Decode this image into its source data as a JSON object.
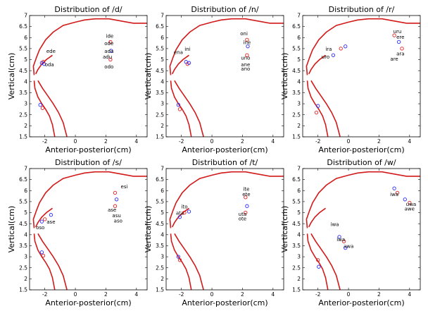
{
  "figure": {
    "panels": [
      {
        "id": "d",
        "title": "Distribution of /d/"
      },
      {
        "id": "n",
        "title": "Distribution of /n/"
      },
      {
        "id": "r",
        "title": "Distribution of /r/"
      },
      {
        "id": "s",
        "title": "Distribution of /s/"
      },
      {
        "id": "t",
        "title": "Distribution of /t/"
      },
      {
        "id": "w",
        "title": "Distribution of /w/"
      }
    ],
    "xlabel": "Anterior-posterior(cm)",
    "ylabel": "Vertical(cm)",
    "colors": {
      "tract": "#d21a1a",
      "marker_blue": "#2a2aff",
      "marker_red": "#e02020"
    }
  },
  "chart_data": [
    {
      "type": "scatter",
      "title": "Distribution of /d/",
      "xlabel": "Anterior-posterior(cm)",
      "ylabel": "Vertical(cm)",
      "xlim": [
        -3,
        4.7
      ],
      "ylim": [
        1.5,
        7
      ],
      "xticks": [
        -2,
        0,
        2,
        4
      ],
      "yticks": [
        1.5,
        2,
        2.5,
        3,
        3.5,
        4,
        4.5,
        5,
        5.5,
        6,
        6.5,
        7
      ],
      "points": [
        {
          "x": -2.2,
          "y": 4.85
        },
        {
          "x": -2.1,
          "y": 4.9
        },
        {
          "x": -2.05,
          "y": 4.8
        },
        {
          "x": 2.3,
          "y": 5.8
        },
        {
          "x": 2.35,
          "y": 5.4
        },
        {
          "x": 2.3,
          "y": 5.0
        },
        {
          "x": -2.3,
          "y": 2.95
        },
        {
          "x": -2.15,
          "y": 2.8
        }
      ],
      "labels": [
        {
          "text": "ide",
          "x": 2.25,
          "y": 6.0
        },
        {
          "text": "ode",
          "x": 2.2,
          "y": 5.65
        },
        {
          "text": "ada",
          "x": 2.2,
          "y": 5.3
        },
        {
          "text": "adu",
          "x": 2.1,
          "y": 5.05
        },
        {
          "text": "odo",
          "x": 2.2,
          "y": 4.6
        },
        {
          "text": "ede",
          "x": -1.6,
          "y": 5.3
        },
        {
          "text": "oda",
          "x": -1.7,
          "y": 4.7
        }
      ]
    },
    {
      "type": "scatter",
      "title": "Distribution of /n/",
      "xlabel": "Anterior-posterior(cm)",
      "ylabel": "Vertical(cm)",
      "xlim": [
        -3,
        4.7
      ],
      "ylim": [
        1.5,
        7
      ],
      "xticks": [
        -2,
        0,
        2,
        4
      ],
      "yticks": [
        1.5,
        2,
        2.5,
        3,
        3.5,
        4,
        4.5,
        5,
        5.5,
        6,
        6.5,
        7
      ],
      "points": [
        {
          "x": -1.7,
          "y": 4.9
        },
        {
          "x": -1.6,
          "y": 4.8
        },
        {
          "x": -1.5,
          "y": 4.85
        },
        {
          "x": 2.3,
          "y": 5.9
        },
        {
          "x": 2.35,
          "y": 5.6
        },
        {
          "x": 2.3,
          "y": 5.2
        },
        {
          "x": -2.2,
          "y": 2.95
        },
        {
          "x": -2.1,
          "y": 2.75
        }
      ],
      "labels": [
        {
          "text": "oni",
          "x": 2.1,
          "y": 6.1
        },
        {
          "text": "ine",
          "x": 2.3,
          "y": 5.7
        },
        {
          "text": "uno",
          "x": 2.2,
          "y": 5.0
        },
        {
          "text": "ane",
          "x": 2.2,
          "y": 4.7
        },
        {
          "text": "ano",
          "x": 2.2,
          "y": 4.5
        },
        {
          "text": "ena",
          "x": -2.2,
          "y": 5.25
        },
        {
          "text": "ini",
          "x": -1.6,
          "y": 5.4
        }
      ]
    },
    {
      "type": "scatter",
      "title": "Distribution of /r/",
      "xlabel": "Anterior-posterior(cm)",
      "ylabel": "Vertical(cm)",
      "xlim": [
        -3,
        4.7
      ],
      "ylim": [
        1.5,
        7
      ],
      "xticks": [
        -2,
        0,
        2,
        4
      ],
      "yticks": [
        1.5,
        2,
        2.5,
        3,
        3.5,
        4,
        4.5,
        5,
        5.5,
        6,
        6.5,
        7
      ],
      "points": [
        {
          "x": -1.0,
          "y": 5.2
        },
        {
          "x": -0.5,
          "y": 5.5
        },
        {
          "x": -0.2,
          "y": 5.6
        },
        {
          "x": 3.0,
          "y": 6.1
        },
        {
          "x": 3.3,
          "y": 5.8
        },
        {
          "x": 3.5,
          "y": 5.5
        },
        {
          "x": -2.0,
          "y": 2.9
        },
        {
          "x": -2.1,
          "y": 2.6
        }
      ],
      "labels": [
        {
          "text": "uru",
          "x": 3.2,
          "y": 6.2
        },
        {
          "text": "ere",
          "x": 3.4,
          "y": 5.95
        },
        {
          "text": "ara",
          "x": 3.4,
          "y": 5.2
        },
        {
          "text": "are",
          "x": 3.0,
          "y": 4.95
        },
        {
          "text": "ira",
          "x": -1.3,
          "y": 5.4
        },
        {
          "text": "uro",
          "x": -1.5,
          "y": 5.05
        }
      ]
    },
    {
      "type": "scatter",
      "title": "Distribution of /s/",
      "xlabel": "Anterior-posterior(cm)",
      "ylabel": "Vertical(cm)",
      "xlim": [
        -3,
        4.7
      ],
      "ylim": [
        1.5,
        7
      ],
      "xticks": [
        -2,
        0,
        2,
        4
      ],
      "yticks": [
        1.5,
        2,
        2.5,
        3,
        3.5,
        4,
        4.5,
        5,
        5.5,
        6,
        6.5,
        7
      ],
      "points": [
        {
          "x": -2.2,
          "y": 4.6
        },
        {
          "x": -2.0,
          "y": 4.7
        },
        {
          "x": -1.6,
          "y": 4.9
        },
        {
          "x": 2.6,
          "y": 5.9
        },
        {
          "x": 2.7,
          "y": 5.6
        },
        {
          "x": 2.6,
          "y": 5.3
        },
        {
          "x": -2.2,
          "y": 3.2
        },
        {
          "x": -2.1,
          "y": 3.05
        }
      ],
      "labels": [
        {
          "text": "esi",
          "x": 3.2,
          "y": 6.1
        },
        {
          "text": "ase",
          "x": 2.4,
          "y": 5.05
        },
        {
          "text": "asu",
          "x": 2.7,
          "y": 4.8
        },
        {
          "text": "aso",
          "x": 2.8,
          "y": 4.55
        },
        {
          "text": "ase",
          "x": -1.6,
          "y": 4.5
        },
        {
          "text": "oso",
          "x": -2.3,
          "y": 4.25
        }
      ]
    },
    {
      "type": "scatter",
      "title": "Distribution of /t/",
      "xlabel": "Anterior-posterior(cm)",
      "ylabel": "Vertical(cm)",
      "xlim": [
        -3,
        4.7
      ],
      "ylim": [
        1.5,
        7
      ],
      "xticks": [
        -2,
        0,
        2,
        4
      ],
      "yticks": [
        1.5,
        2,
        2.5,
        3,
        3.5,
        4,
        4.5,
        5,
        5.5,
        6,
        6.5,
        7
      ],
      "points": [
        {
          "x": -2.1,
          "y": 4.8
        },
        {
          "x": -1.8,
          "y": 5.0
        },
        {
          "x": -1.5,
          "y": 5.05
        },
        {
          "x": 2.2,
          "y": 5.7
        },
        {
          "x": 2.3,
          "y": 5.3
        },
        {
          "x": 2.2,
          "y": 5.0
        },
        {
          "x": -2.2,
          "y": 3.0
        },
        {
          "x": -2.1,
          "y": 2.85
        }
      ],
      "labels": [
        {
          "text": "ite",
          "x": 2.25,
          "y": 6.0
        },
        {
          "text": "ete",
          "x": 2.25,
          "y": 5.75
        },
        {
          "text": "uta",
          "x": 2.0,
          "y": 4.85
        },
        {
          "text": "ote",
          "x": 2.0,
          "y": 4.65
        },
        {
          "text": "ito",
          "x": -1.8,
          "y": 5.2
        },
        {
          "text": "ata",
          "x": -2.1,
          "y": 4.9
        }
      ]
    },
    {
      "type": "scatter",
      "title": "Distribution of /w/",
      "xlabel": "Anterior-posterior(cm)",
      "ylabel": "Vertical(cm)",
      "xlim": [
        -3,
        4.7
      ],
      "ylim": [
        1.5,
        7
      ],
      "xticks": [
        -2,
        0,
        2,
        4
      ],
      "yticks": [
        1.5,
        2,
        2.5,
        3,
        3.5,
        4,
        4.5,
        5,
        5.5,
        6,
        6.5,
        7
      ],
      "points": [
        {
          "x": 3.0,
          "y": 6.1
        },
        {
          "x": 3.2,
          "y": 5.9
        },
        {
          "x": 3.7,
          "y": 5.6
        },
        {
          "x": 4.0,
          "y": 5.45
        },
        {
          "x": -0.6,
          "y": 3.9
        },
        {
          "x": -0.3,
          "y": 3.7
        },
        {
          "x": -0.2,
          "y": 3.4
        },
        {
          "x": -2.0,
          "y": 2.85
        },
        {
          "x": -1.95,
          "y": 2.55
        }
      ],
      "labels": [
        {
          "text": "iwa",
          "x": 3.0,
          "y": 5.75
        },
        {
          "text": "uwa",
          "x": 4.1,
          "y": 5.3
        },
        {
          "text": "awe",
          "x": 4.0,
          "y": 5.1
        },
        {
          "text": "iwa",
          "x": -0.9,
          "y": 4.4
        },
        {
          "text": "iwa",
          "x": -0.5,
          "y": 3.7
        },
        {
          "text": "awa",
          "x": 0.0,
          "y": 3.4
        }
      ]
    }
  ]
}
